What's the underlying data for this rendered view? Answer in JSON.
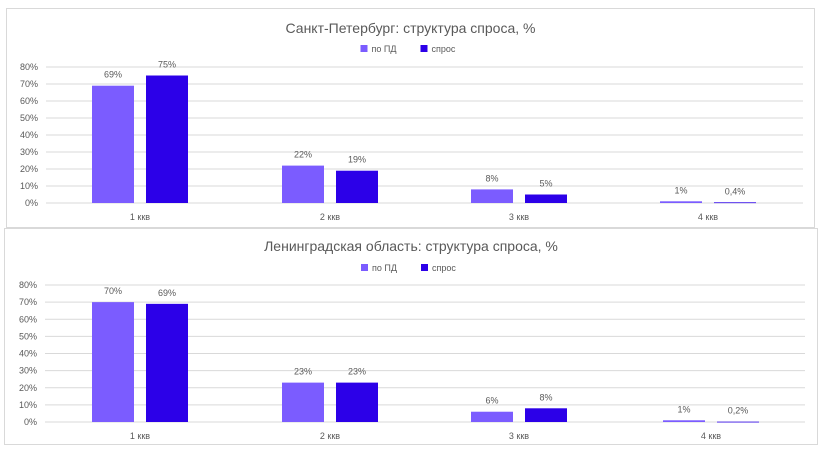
{
  "colors": {
    "series1": "#7b5cff",
    "series2": "#2c00e8",
    "grid": "#d9d9d9"
  },
  "chart_data": [
    {
      "type": "bar",
      "title": "Санкт-Петербург: структура спроса, %",
      "categories": [
        "1 ккв",
        "2 ккв",
        "3 ккв",
        "4 ккв"
      ],
      "series": [
        {
          "name": "по ПД",
          "values": [
            69,
            22,
            8,
            1
          ],
          "labels": [
            "69%",
            "22%",
            "8%",
            "1%"
          ]
        },
        {
          "name": "спрос",
          "values": [
            75,
            19,
            5,
            0.4
          ],
          "labels": [
            "75%",
            "19%",
            "5%",
            "0,4%"
          ]
        }
      ],
      "yticks": [
        "0%",
        "10%",
        "20%",
        "30%",
        "40%",
        "50%",
        "60%",
        "70%",
        "80%"
      ],
      "ylim": [
        0,
        80
      ],
      "grid": true,
      "legend": "top-center"
    },
    {
      "type": "bar",
      "title": "Ленинградская область: структура спроса, %",
      "categories": [
        "1 ккв",
        "2 ккв",
        "3 ккв",
        "4 ккв"
      ],
      "series": [
        {
          "name": "по ПД",
          "values": [
            70,
            23,
            6,
            1
          ],
          "labels": [
            "70%",
            "23%",
            "6%",
            "1%"
          ]
        },
        {
          "name": "спрос",
          "values": [
            69,
            23,
            8,
            0.2
          ],
          "labels": [
            "69%",
            "23%",
            "8%",
            "0,2%"
          ]
        }
      ],
      "yticks": [
        "0%",
        "10%",
        "20%",
        "30%",
        "40%",
        "50%",
        "60%",
        "70%",
        "80%"
      ],
      "ylim": [
        0,
        80
      ],
      "grid": true,
      "legend": "top-center"
    }
  ]
}
